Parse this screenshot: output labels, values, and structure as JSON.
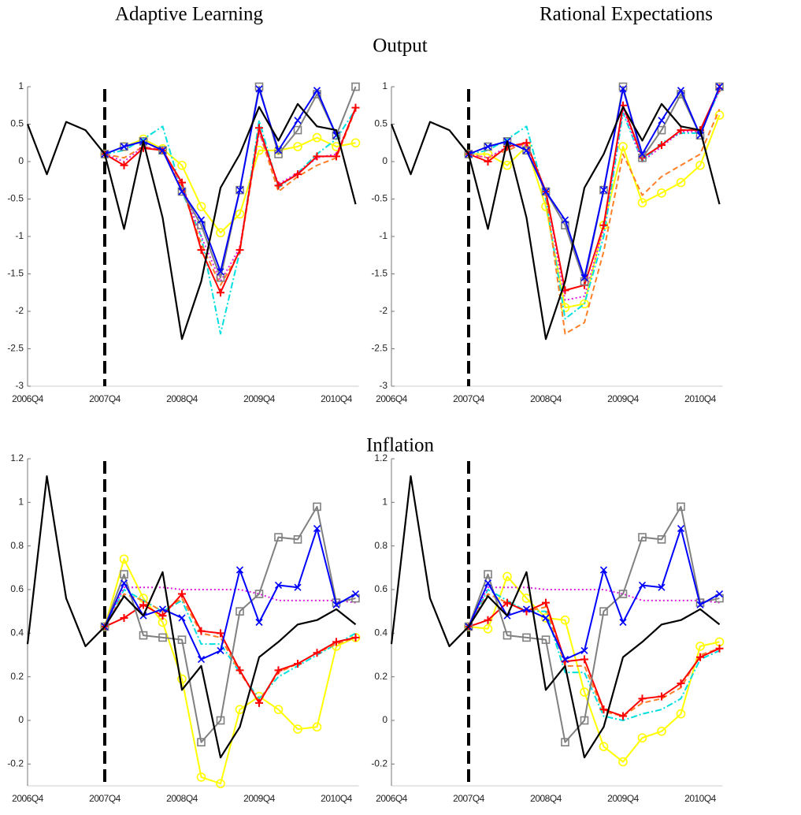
{
  "column_titles": [
    "Adaptive Learning",
    "Rational Expectations"
  ],
  "row_titles": [
    "Output",
    "Inflation"
  ],
  "chart_data": [
    {
      "type": "line",
      "categories": [
        "2006Q4",
        null,
        null,
        null,
        "2007Q4",
        null,
        null,
        null,
        "2008Q4",
        null,
        null,
        null,
        "2009Q4",
        null,
        null,
        null,
        "2010Q4",
        null
      ],
      "ylim": [
        -3,
        1
      ],
      "yticks": [
        -3,
        -2.5,
        -2,
        -1.5,
        -1,
        -0.5,
        0,
        0.5,
        1
      ],
      "vline_index": 4,
      "series": [
        {
          "color": "#ffff00",
          "marker": "o",
          "dash": "solid",
          "values": [
            null,
            null,
            null,
            null,
            0.1,
            0.2,
            0.3,
            0.17,
            -0.05,
            -0.6,
            -0.95,
            -0.7,
            0.15,
            0.15,
            0.2,
            0.32,
            0.2,
            0.25
          ]
        },
        {
          "color": "#00e0e0",
          "marker": "none",
          "dash": "dashdot",
          "values": [
            null,
            null,
            null,
            null,
            0.1,
            0.15,
            0.3,
            0.47,
            -0.4,
            -1.0,
            -2.3,
            -1.2,
            0.55,
            -0.35,
            -0.15,
            0.1,
            0.3,
            0.7
          ]
        },
        {
          "color": "#ff7f27",
          "marker": "none",
          "dash": "dashed",
          "values": [
            null,
            null,
            null,
            null,
            0.1,
            0.05,
            0.2,
            0.15,
            -0.35,
            -1.1,
            -1.65,
            -1.2,
            0.4,
            -0.4,
            -0.2,
            -0.05,
            0.05,
            0.7
          ]
        },
        {
          "color": "#e020e0",
          "marker": "none",
          "dash": "dotted",
          "values": [
            null,
            null,
            null,
            null,
            0.1,
            0.0,
            0.2,
            0.15,
            -0.3,
            -1.0,
            -1.6,
            -1.15,
            0.4,
            -0.3,
            -0.15,
            0.05,
            0.1,
            0.7
          ]
        },
        {
          "color": "#ff0000",
          "marker": "+",
          "dash": "solid",
          "values": [
            null,
            null,
            null,
            null,
            0.1,
            -0.05,
            0.18,
            0.15,
            -0.28,
            -1.18,
            -1.75,
            -1.18,
            0.45,
            -0.32,
            -0.17,
            0.07,
            0.07,
            0.72
          ]
        },
        {
          "color": "#808080",
          "marker": "s",
          "dash": "solid",
          "values": [
            null,
            null,
            null,
            null,
            0.1,
            0.2,
            0.27,
            0.15,
            -0.4,
            -0.85,
            -1.55,
            -0.38,
            1.0,
            0.1,
            0.42,
            0.9,
            0.35,
            1.0
          ]
        },
        {
          "color": "#0000ff",
          "marker": "x",
          "dash": "solid",
          "values": [
            null,
            null,
            null,
            null,
            0.1,
            0.2,
            0.27,
            0.15,
            -0.4,
            -0.78,
            -1.47,
            -0.38,
            0.97,
            0.15,
            0.55,
            0.95,
            0.35,
            null
          ]
        },
        {
          "color": "#000000",
          "marker": "none",
          "dash": "solid",
          "values": [
            0.5,
            -0.17,
            0.53,
            0.42,
            0.1,
            -0.9,
            0.27,
            -0.75,
            -2.37,
            -1.6,
            -0.35,
            0.1,
            0.73,
            0.28,
            0.77,
            0.47,
            0.42,
            -0.57
          ]
        }
      ]
    },
    {
      "type": "line",
      "categories": [
        "2006Q4",
        null,
        null,
        null,
        "2007Q4",
        null,
        null,
        null,
        "2008Q4",
        null,
        null,
        null,
        "2009Q4",
        null,
        null,
        null,
        "2010Q4",
        null
      ],
      "ylim": [
        -3,
        1
      ],
      "yticks": [
        -3,
        -2.5,
        -2,
        -1.5,
        -1,
        -0.5,
        0,
        0.5,
        1
      ],
      "vline_index": 4,
      "series": [
        {
          "color": "#ffff00",
          "marker": "o",
          "dash": "solid",
          "values": [
            null,
            null,
            null,
            null,
            0.1,
            0.1,
            -0.05,
            0.2,
            -0.6,
            -1.95,
            -1.9,
            -0.85,
            0.2,
            -0.55,
            -0.42,
            -0.28,
            -0.05,
            0.62
          ]
        },
        {
          "color": "#00e0e0",
          "marker": "none",
          "dash": "dashdot",
          "values": [
            null,
            null,
            null,
            null,
            0.1,
            0.15,
            0.3,
            0.47,
            -0.5,
            -2.1,
            -1.9,
            -1.0,
            0.65,
            0.0,
            0.25,
            0.38,
            0.38,
            0.95
          ]
        },
        {
          "color": "#ff7f27",
          "marker": "none",
          "dash": "dashed",
          "values": [
            null,
            null,
            null,
            null,
            0.1,
            0.05,
            0.15,
            0.25,
            -0.45,
            -2.3,
            -2.15,
            -1.2,
            0.1,
            -0.45,
            -0.2,
            -0.05,
            0.1,
            0.7
          ]
        },
        {
          "color": "#e020e0",
          "marker": "none",
          "dash": "dotted",
          "values": [
            null,
            null,
            null,
            null,
            0.1,
            0.05,
            0.2,
            0.22,
            -0.4,
            -1.85,
            -1.8,
            -0.9,
            0.7,
            0.0,
            0.2,
            0.4,
            0.4,
            0.95
          ]
        },
        {
          "color": "#ff0000",
          "marker": "+",
          "dash": "solid",
          "values": [
            null,
            null,
            null,
            null,
            0.1,
            0.0,
            0.2,
            0.25,
            -0.4,
            -1.72,
            -1.65,
            -0.85,
            0.75,
            0.05,
            0.22,
            0.42,
            0.42,
            0.98
          ]
        },
        {
          "color": "#808080",
          "marker": "s",
          "dash": "solid",
          "values": [
            null,
            null,
            null,
            null,
            0.1,
            0.2,
            0.27,
            0.15,
            -0.4,
            -0.85,
            -1.6,
            -0.38,
            1.0,
            0.05,
            0.42,
            0.9,
            0.35,
            1.0
          ]
        },
        {
          "color": "#0000ff",
          "marker": "x",
          "dash": "solid",
          "values": [
            null,
            null,
            null,
            null,
            0.1,
            0.2,
            0.27,
            0.15,
            -0.4,
            -0.78,
            -1.55,
            -0.38,
            0.97,
            0.1,
            0.55,
            0.95,
            0.35,
            1.0
          ]
        },
        {
          "color": "#000000",
          "marker": "none",
          "dash": "solid",
          "values": [
            0.5,
            -0.17,
            0.53,
            0.42,
            0.1,
            -0.9,
            0.27,
            -0.75,
            -2.37,
            -1.6,
            -0.35,
            0.1,
            0.73,
            0.28,
            0.77,
            0.47,
            0.42,
            -0.57
          ]
        }
      ]
    },
    {
      "type": "line",
      "categories": [
        "2006Q4",
        null,
        null,
        null,
        "2007Q4",
        null,
        null,
        null,
        "2008Q4",
        null,
        null,
        null,
        "2009Q4",
        null,
        null,
        null,
        "2010Q4",
        null
      ],
      "ylim": [
        -0.3,
        1.2
      ],
      "yticks": [
        -0.2,
        0,
        0.2,
        0.4,
        0.6,
        0.8,
        1,
        1.2
      ],
      "vline_index": 4,
      "series": [
        {
          "color": "#ffff00",
          "marker": "o",
          "dash": "solid",
          "values": [
            null,
            null,
            null,
            null,
            0.43,
            0.74,
            0.56,
            0.45,
            0.19,
            -0.26,
            -0.29,
            0.05,
            0.11,
            0.05,
            -0.04,
            -0.03,
            0.34,
            0.38
          ]
        },
        {
          "color": "#00e0e0",
          "marker": "none",
          "dash": "dashdot",
          "values": [
            null,
            null,
            null,
            null,
            0.43,
            0.6,
            0.55,
            0.5,
            0.55,
            0.35,
            0.35,
            0.22,
            0.1,
            0.2,
            0.25,
            0.3,
            0.35,
            0.4
          ]
        },
        {
          "color": "#ff7f27",
          "marker": "none",
          "dash": "dashed",
          "values": [
            null,
            null,
            null,
            null,
            0.43,
            0.58,
            0.55,
            0.5,
            0.56,
            0.4,
            0.38,
            0.22,
            0.09,
            0.22,
            0.26,
            0.31,
            0.35,
            0.38
          ]
        },
        {
          "color": "#e020e0",
          "marker": "none",
          "dash": "dotted",
          "values": [
            null,
            null,
            null,
            null,
            0.43,
            0.61,
            0.61,
            0.61,
            0.6,
            0.6,
            0.6,
            0.6,
            0.58,
            0.55,
            0.55,
            0.55,
            0.55,
            0.54
          ]
        },
        {
          "color": "#ff0000",
          "marker": "+",
          "dash": "solid",
          "values": [
            null,
            null,
            null,
            null,
            0.43,
            0.47,
            0.53,
            0.48,
            0.58,
            0.41,
            0.4,
            0.23,
            0.08,
            0.23,
            0.26,
            0.31,
            0.36,
            0.38
          ]
        },
        {
          "color": "#808080",
          "marker": "s",
          "dash": "solid",
          "values": [
            null,
            null,
            null,
            null,
            0.43,
            0.67,
            0.39,
            0.38,
            0.37,
            -0.1,
            0.0,
            0.5,
            0.58,
            0.84,
            0.83,
            0.98,
            0.54,
            0.56
          ]
        },
        {
          "color": "#0000ff",
          "marker": "x",
          "dash": "solid",
          "values": [
            null,
            null,
            null,
            null,
            0.43,
            0.63,
            0.48,
            0.51,
            0.47,
            0.28,
            0.32,
            0.69,
            0.45,
            0.62,
            0.61,
            0.88,
            0.53,
            0.58
          ]
        },
        {
          "color": "#000000",
          "marker": "none",
          "dash": "solid",
          "values": [
            0.35,
            1.12,
            0.56,
            0.34,
            0.43,
            0.57,
            0.48,
            0.68,
            0.14,
            0.25,
            -0.17,
            -0.03,
            0.29,
            0.36,
            0.44,
            0.46,
            0.51,
            0.44
          ]
        }
      ]
    },
    {
      "type": "line",
      "categories": [
        "2006Q4",
        null,
        null,
        null,
        "2007Q4",
        null,
        null,
        null,
        "2008Q4",
        null,
        null,
        null,
        "2009Q4",
        null,
        null,
        null,
        "2010Q4",
        null
      ],
      "ylim": [
        -0.3,
        1.2
      ],
      "yticks": [
        -0.2,
        0,
        0.2,
        0.4,
        0.6,
        0.8,
        1,
        1.2
      ],
      "vline_index": 4,
      "series": [
        {
          "color": "#ffff00",
          "marker": "o",
          "dash": "solid",
          "values": [
            null,
            null,
            null,
            null,
            0.43,
            0.42,
            0.66,
            0.56,
            0.47,
            0.46,
            0.13,
            -0.12,
            -0.19,
            -0.08,
            -0.05,
            0.03,
            0.34,
            0.36
          ]
        },
        {
          "color": "#00e0e0",
          "marker": "none",
          "dash": "dashdot",
          "values": [
            null,
            null,
            null,
            null,
            0.43,
            0.6,
            0.55,
            0.5,
            0.5,
            0.22,
            0.22,
            0.02,
            0.0,
            0.03,
            0.05,
            0.1,
            0.28,
            0.32
          ]
        },
        {
          "color": "#ff7f27",
          "marker": "none",
          "dash": "dashed",
          "values": [
            null,
            null,
            null,
            null,
            0.43,
            0.58,
            0.54,
            0.5,
            0.52,
            0.25,
            0.25,
            0.04,
            0.02,
            0.08,
            0.1,
            0.15,
            0.3,
            0.33
          ]
        },
        {
          "color": "#e020e0",
          "marker": "none",
          "dash": "dotted",
          "values": [
            null,
            null,
            null,
            null,
            0.43,
            0.61,
            0.61,
            0.61,
            0.6,
            0.6,
            0.6,
            0.6,
            0.58,
            0.55,
            0.55,
            0.55,
            0.55,
            0.54
          ]
        },
        {
          "color": "#ff0000",
          "marker": "+",
          "dash": "solid",
          "values": [
            null,
            null,
            null,
            null,
            0.43,
            0.46,
            0.54,
            0.5,
            0.54,
            0.27,
            0.28,
            0.05,
            0.02,
            0.1,
            0.11,
            0.17,
            0.29,
            0.33
          ]
        },
        {
          "color": "#808080",
          "marker": "s",
          "dash": "solid",
          "values": [
            null,
            null,
            null,
            null,
            0.43,
            0.67,
            0.39,
            0.38,
            0.37,
            -0.1,
            0.0,
            0.5,
            0.58,
            0.84,
            0.83,
            0.98,
            0.54,
            0.56
          ]
        },
        {
          "color": "#0000ff",
          "marker": "x",
          "dash": "solid",
          "values": [
            null,
            null,
            null,
            null,
            0.43,
            0.63,
            0.48,
            0.51,
            0.47,
            0.28,
            0.32,
            0.69,
            0.45,
            0.62,
            0.61,
            0.88,
            0.53,
            0.58
          ]
        },
        {
          "color": "#000000",
          "marker": "none",
          "dash": "solid",
          "values": [
            0.35,
            1.12,
            0.56,
            0.34,
            0.43,
            0.57,
            0.48,
            0.68,
            0.14,
            0.25,
            -0.17,
            -0.03,
            0.29,
            0.36,
            0.44,
            0.46,
            0.51,
            0.44
          ]
        }
      ]
    }
  ]
}
